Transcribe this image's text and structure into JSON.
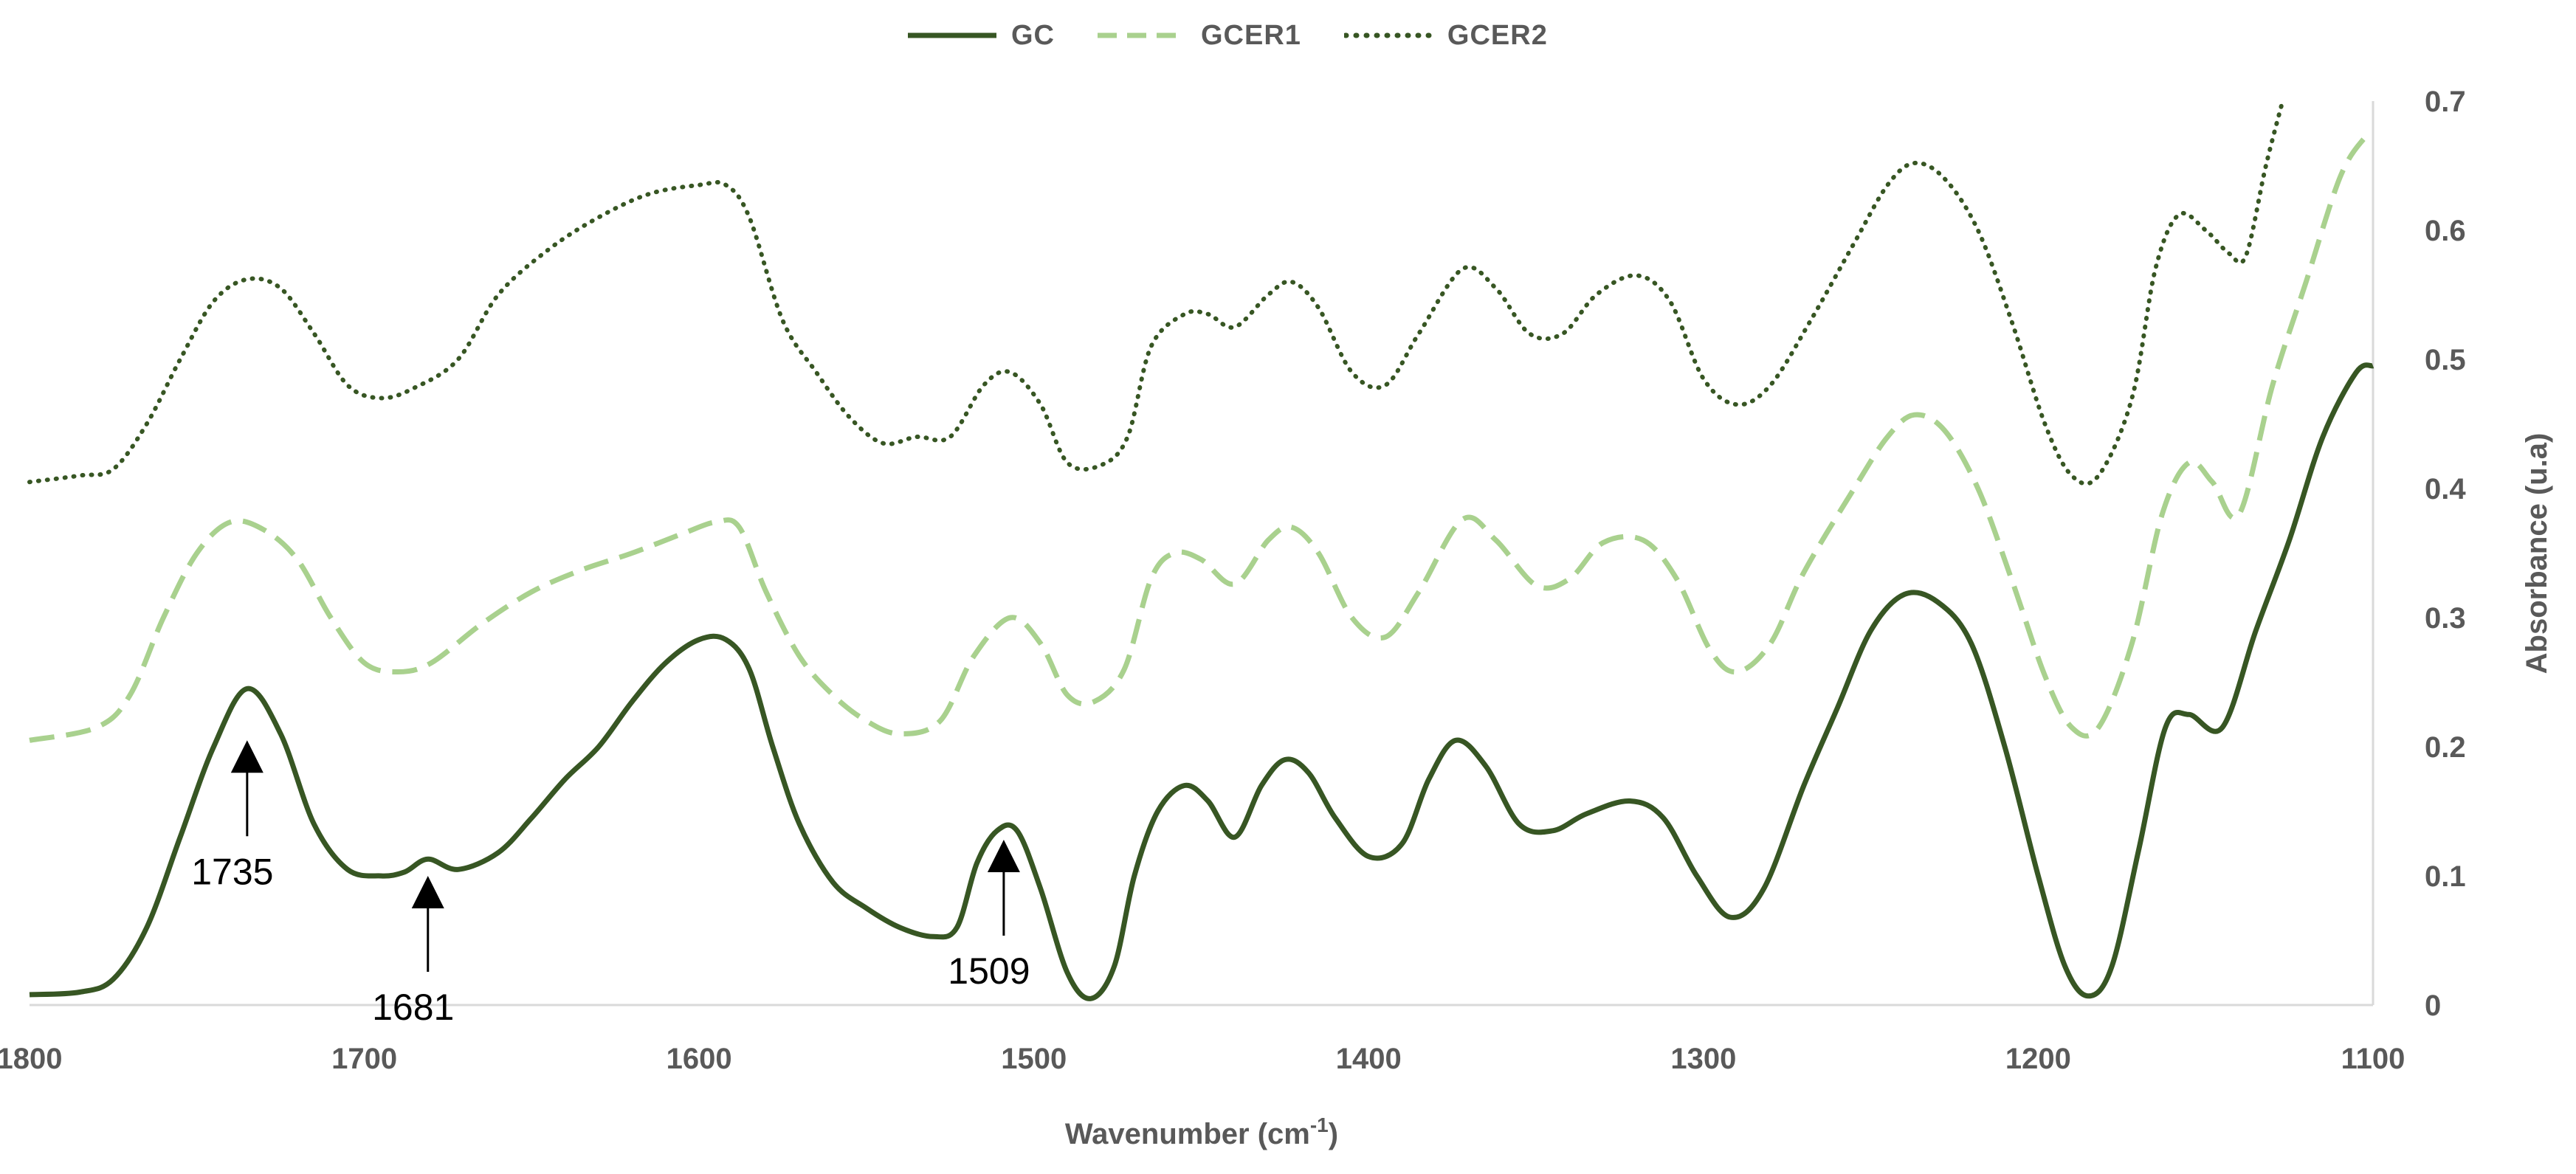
{
  "chart_data": {
    "type": "line",
    "title": "",
    "xlabel": "Wavenumber (cm",
    "xlabel_sup": "-1",
    "xlabel_end": ")",
    "ylabel": "Absorbance (u.a)",
    "xlim": [
      1800,
      1100
    ],
    "ylim": [
      0,
      0.7
    ],
    "x_reversed": true,
    "y_axis_side": "right",
    "grid": false,
    "legend_position": "top",
    "xticks": [
      1800,
      1700,
      1600,
      1500,
      1400,
      1300,
      1200,
      1100
    ],
    "xtick_labels": [
      "1800",
      "1700",
      "1600",
      "1500",
      "1400",
      "1300",
      "1200",
      "1100"
    ],
    "yticks": [
      0,
      0.1,
      0.2,
      0.3,
      0.4,
      0.5,
      0.6,
      0.7
    ],
    "ytick_labels": [
      "0",
      "0.1",
      "0.2",
      "0.3",
      "0.4",
      "0.5",
      "0.6",
      "0.7"
    ],
    "series": [
      {
        "name": "GC",
        "color": "#375623",
        "dash": "solid",
        "points": [
          [
            1800,
            0.008
          ],
          [
            1785,
            0.01
          ],
          [
            1775,
            0.02
          ],
          [
            1765,
            0.06
          ],
          [
            1755,
            0.13
          ],
          [
            1745,
            0.2
          ],
          [
            1735,
            0.245
          ],
          [
            1725,
            0.21
          ],
          [
            1715,
            0.14
          ],
          [
            1705,
            0.105
          ],
          [
            1695,
            0.1
          ],
          [
            1688,
            0.103
          ],
          [
            1681,
            0.113
          ],
          [
            1672,
            0.105
          ],
          [
            1660,
            0.118
          ],
          [
            1650,
            0.145
          ],
          [
            1640,
            0.175
          ],
          [
            1630,
            0.2
          ],
          [
            1620,
            0.235
          ],
          [
            1610,
            0.265
          ],
          [
            1600,
            0.283
          ],
          [
            1592,
            0.283
          ],
          [
            1585,
            0.26
          ],
          [
            1578,
            0.2
          ],
          [
            1570,
            0.14
          ],
          [
            1560,
            0.095
          ],
          [
            1550,
            0.075
          ],
          [
            1540,
            0.06
          ],
          [
            1530,
            0.053
          ],
          [
            1523,
            0.06
          ],
          [
            1517,
            0.11
          ],
          [
            1511,
            0.135
          ],
          [
            1505,
            0.135
          ],
          [
            1498,
            0.09
          ],
          [
            1490,
            0.025
          ],
          [
            1483,
            0.005
          ],
          [
            1476,
            0.03
          ],
          [
            1470,
            0.1
          ],
          [
            1463,
            0.15
          ],
          [
            1455,
            0.17
          ],
          [
            1448,
            0.158
          ],
          [
            1440,
            0.13
          ],
          [
            1432,
            0.17
          ],
          [
            1425,
            0.19
          ],
          [
            1418,
            0.18
          ],
          [
            1410,
            0.145
          ],
          [
            1400,
            0.115
          ],
          [
            1390,
            0.125
          ],
          [
            1382,
            0.175
          ],
          [
            1374,
            0.205
          ],
          [
            1365,
            0.185
          ],
          [
            1355,
            0.14
          ],
          [
            1345,
            0.135
          ],
          [
            1335,
            0.148
          ],
          [
            1322,
            0.158
          ],
          [
            1312,
            0.145
          ],
          [
            1302,
            0.1
          ],
          [
            1292,
            0.068
          ],
          [
            1282,
            0.09
          ],
          [
            1270,
            0.17
          ],
          [
            1260,
            0.23
          ],
          [
            1250,
            0.29
          ],
          [
            1240,
            0.318
          ],
          [
            1230,
            0.312
          ],
          [
            1220,
            0.28
          ],
          [
            1210,
            0.2
          ],
          [
            1200,
            0.1
          ],
          [
            1192,
            0.03
          ],
          [
            1185,
            0.007
          ],
          [
            1178,
            0.03
          ],
          [
            1170,
            0.12
          ],
          [
            1162,
            0.215
          ],
          [
            1155,
            0.225
          ],
          [
            1145,
            0.215
          ],
          [
            1135,
            0.29
          ],
          [
            1125,
            0.36
          ],
          [
            1115,
            0.44
          ],
          [
            1105,
            0.49
          ],
          [
            1100,
            0.495
          ]
        ]
      },
      {
        "name": "GCER1",
        "color": "#a9d18e",
        "dash": "dashed",
        "points": [
          [
            1800,
            0.205
          ],
          [
            1780,
            0.215
          ],
          [
            1770,
            0.24
          ],
          [
            1760,
            0.3
          ],
          [
            1750,
            0.35
          ],
          [
            1740,
            0.374
          ],
          [
            1730,
            0.368
          ],
          [
            1720,
            0.345
          ],
          [
            1710,
            0.3
          ],
          [
            1700,
            0.265
          ],
          [
            1690,
            0.258
          ],
          [
            1680,
            0.265
          ],
          [
            1665,
            0.295
          ],
          [
            1650,
            0.32
          ],
          [
            1635,
            0.337
          ],
          [
            1620,
            0.35
          ],
          [
            1605,
            0.365
          ],
          [
            1595,
            0.374
          ],
          [
            1588,
            0.37
          ],
          [
            1580,
            0.32
          ],
          [
            1570,
            0.27
          ],
          [
            1560,
            0.24
          ],
          [
            1550,
            0.22
          ],
          [
            1540,
            0.21
          ],
          [
            1528,
            0.22
          ],
          [
            1518,
            0.27
          ],
          [
            1507,
            0.3
          ],
          [
            1498,
            0.28
          ],
          [
            1490,
            0.24
          ],
          [
            1482,
            0.235
          ],
          [
            1473,
            0.26
          ],
          [
            1465,
            0.33
          ],
          [
            1458,
            0.35
          ],
          [
            1450,
            0.345
          ],
          [
            1440,
            0.326
          ],
          [
            1430,
            0.36
          ],
          [
            1423,
            0.37
          ],
          [
            1415,
            0.35
          ],
          [
            1405,
            0.3
          ],
          [
            1395,
            0.285
          ],
          [
            1385,
            0.32
          ],
          [
            1372,
            0.376
          ],
          [
            1362,
            0.36
          ],
          [
            1350,
            0.325
          ],
          [
            1340,
            0.33
          ],
          [
            1330,
            0.358
          ],
          [
            1318,
            0.36
          ],
          [
            1308,
            0.33
          ],
          [
            1298,
            0.275
          ],
          [
            1290,
            0.258
          ],
          [
            1280,
            0.28
          ],
          [
            1270,
            0.335
          ],
          [
            1255,
            0.4
          ],
          [
            1245,
            0.44
          ],
          [
            1237,
            0.457
          ],
          [
            1228,
            0.445
          ],
          [
            1218,
            0.4
          ],
          [
            1208,
            0.33
          ],
          [
            1198,
            0.255
          ],
          [
            1190,
            0.215
          ],
          [
            1182,
            0.215
          ],
          [
            1172,
            0.28
          ],
          [
            1163,
            0.38
          ],
          [
            1155,
            0.42
          ],
          [
            1148,
            0.405
          ],
          [
            1140,
            0.38
          ],
          [
            1130,
            0.48
          ],
          [
            1120,
            0.56
          ],
          [
            1110,
            0.64
          ],
          [
            1103,
            0.67
          ],
          [
            1100,
            0.672
          ]
        ]
      },
      {
        "name": "GCER2",
        "color": "#375623",
        "dash": "dotted",
        "points": [
          [
            1800,
            0.405
          ],
          [
            1785,
            0.41
          ],
          [
            1775,
            0.415
          ],
          [
            1765,
            0.45
          ],
          [
            1755,
            0.5
          ],
          [
            1745,
            0.545
          ],
          [
            1735,
            0.562
          ],
          [
            1725,
            0.555
          ],
          [
            1715,
            0.52
          ],
          [
            1705,
            0.48
          ],
          [
            1695,
            0.47
          ],
          [
            1685,
            0.478
          ],
          [
            1672,
            0.5
          ],
          [
            1660,
            0.55
          ],
          [
            1645,
            0.585
          ],
          [
            1630,
            0.61
          ],
          [
            1615,
            0.628
          ],
          [
            1600,
            0.635
          ],
          [
            1592,
            0.635
          ],
          [
            1585,
            0.61
          ],
          [
            1575,
            0.53
          ],
          [
            1565,
            0.49
          ],
          [
            1555,
            0.455
          ],
          [
            1545,
            0.435
          ],
          [
            1535,
            0.44
          ],
          [
            1525,
            0.44
          ],
          [
            1515,
            0.48
          ],
          [
            1507,
            0.49
          ],
          [
            1498,
            0.465
          ],
          [
            1490,
            0.42
          ],
          [
            1480,
            0.418
          ],
          [
            1472,
            0.44
          ],
          [
            1465,
            0.51
          ],
          [
            1455,
            0.535
          ],
          [
            1448,
            0.535
          ],
          [
            1440,
            0.525
          ],
          [
            1430,
            0.55
          ],
          [
            1423,
            0.56
          ],
          [
            1415,
            0.54
          ],
          [
            1405,
            0.49
          ],
          [
            1395,
            0.48
          ],
          [
            1385,
            0.52
          ],
          [
            1372,
            0.57
          ],
          [
            1362,
            0.555
          ],
          [
            1352,
            0.52
          ],
          [
            1342,
            0.52
          ],
          [
            1332,
            0.55
          ],
          [
            1320,
            0.565
          ],
          [
            1310,
            0.545
          ],
          [
            1300,
            0.485
          ],
          [
            1290,
            0.465
          ],
          [
            1280,
            0.48
          ],
          [
            1268,
            0.53
          ],
          [
            1255,
            0.59
          ],
          [
            1245,
            0.635
          ],
          [
            1237,
            0.652
          ],
          [
            1228,
            0.64
          ],
          [
            1218,
            0.6
          ],
          [
            1208,
            0.53
          ],
          [
            1198,
            0.45
          ],
          [
            1190,
            0.41
          ],
          [
            1182,
            0.41
          ],
          [
            1172,
            0.47
          ],
          [
            1165,
            0.57
          ],
          [
            1158,
            0.612
          ],
          [
            1150,
            0.6
          ],
          [
            1143,
            0.582
          ],
          [
            1138,
            0.58
          ],
          [
            1132,
            0.65
          ],
          [
            1127,
            0.7
          ]
        ]
      }
    ],
    "annotations": [
      {
        "label": "1735",
        "x": 1735,
        "y": 0.205
      },
      {
        "label": "1681",
        "x": 1681,
        "y": 0.1
      },
      {
        "label": "1509",
        "x": 1509,
        "y": 0.128
      }
    ]
  }
}
